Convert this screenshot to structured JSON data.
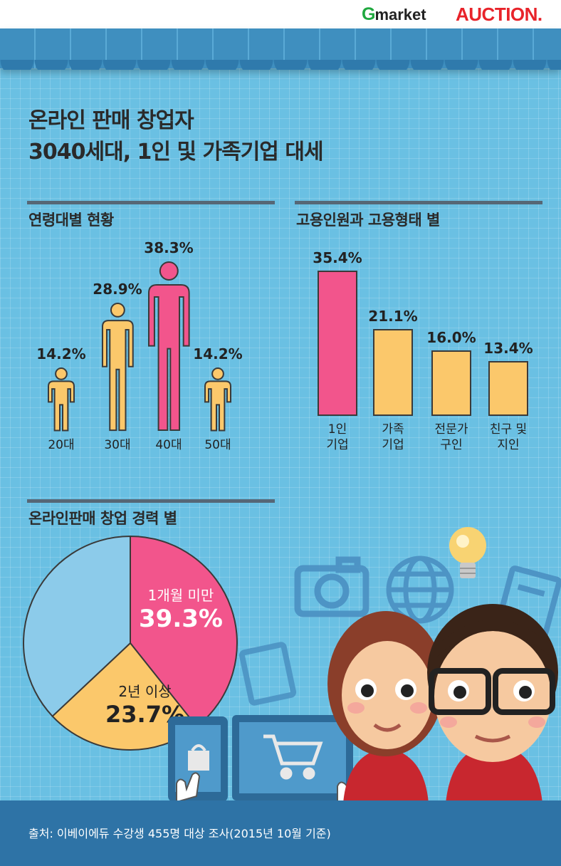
{
  "brand": {
    "gmarket_g": "G",
    "gmarket_rest": "market",
    "auction": "AUCTION."
  },
  "title_line1": "온라인 판매 창업자",
  "title_line2": "3040세대, 1인 및 가족기업 대세",
  "source": "출처: 이베이에듀 수강생 455명 대상 조사(2015년 10월 기준)",
  "colors": {
    "pink": "#f2558c",
    "yellow": "#fbc86b",
    "light_blue": "#8ccbea",
    "board": "#6ac0e3",
    "footer": "#2e73a6"
  },
  "chart_data": [
    {
      "type": "bar",
      "title": "연령대별 현황",
      "categories": [
        "20대",
        "30대",
        "40대",
        "50대"
      ],
      "values": [
        14.2,
        28.9,
        38.3,
        14.2
      ],
      "value_labels": [
        "14.2%",
        "28.9%",
        "38.3%",
        "14.2%"
      ],
      "highlight_index": 2,
      "icon": "person-icon"
    },
    {
      "type": "bar",
      "title": "고용인원과 고용형태 별",
      "categories": [
        "1인\n기업",
        "가족\n기업",
        "전문가\n구인",
        "친구 및\n지인"
      ],
      "values": [
        35.4,
        21.1,
        16.0,
        13.4
      ],
      "value_labels": [
        "35.4%",
        "21.1%",
        "16.0%",
        "13.4%"
      ],
      "highlight_index": 0
    },
    {
      "type": "pie",
      "title": "온라인판매 창업 경력 별",
      "slices": [
        {
          "label": "1개월 미만",
          "value": 39.3,
          "value_label": "39.3%",
          "color": "#f2558c"
        },
        {
          "label": "2년 이상",
          "value": 23.7,
          "value_label": "23.7%",
          "color": "#fbc86b"
        },
        {
          "label": "",
          "value": 37.0,
          "color": "#8ccbea"
        }
      ]
    }
  ]
}
